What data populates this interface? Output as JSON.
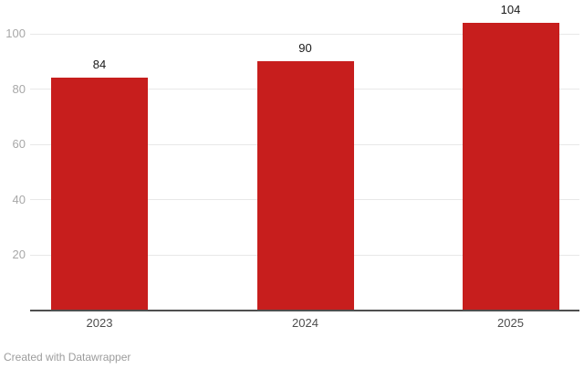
{
  "chart_data": {
    "type": "bar",
    "title": "",
    "xlabel": "",
    "ylabel": "",
    "categories": [
      "2023",
      "2024",
      "2025"
    ],
    "values": [
      84,
      90,
      104
    ],
    "value_labels": [
      "84",
      "90",
      "104"
    ],
    "ylim": [
      0,
      110
    ],
    "yticks": [
      20,
      40,
      60,
      80,
      100
    ],
    "grid": true,
    "legend": false
  },
  "footer": {
    "attribution": "Created with Datawrapper"
  },
  "colors": {
    "bar": "#c71e1d",
    "gridline": "#e8e8e8",
    "axis_line": "#4f4f4f",
    "y_tick_label": "#a8a8a8",
    "x_tick_label": "#4d4d4d",
    "value_label": "#1a1a1a",
    "attribution": "#9c9c9c",
    "background": "#ffffff"
  }
}
